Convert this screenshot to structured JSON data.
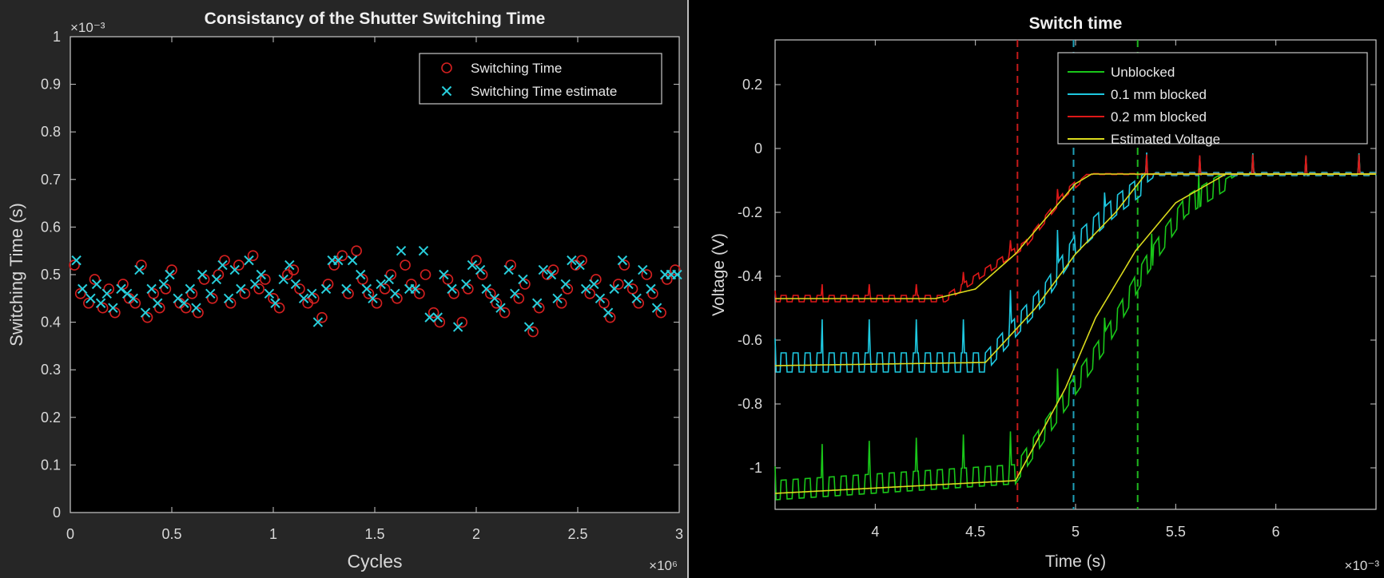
{
  "chart_data": [
    {
      "type": "scatter",
      "title": "Consistancy of the Shutter Switching Time",
      "xlabel": "Cycles",
      "ylabel": "Switching Time (s)",
      "x_exponent": "×10⁶",
      "y_exponent": "×10⁻³",
      "xlim": [
        0,
        3
      ],
      "ylim": [
        0,
        1
      ],
      "x_ticks": [
        "0",
        "0.5",
        "1",
        "1.5",
        "2",
        "2.5",
        "3"
      ],
      "y_ticks": [
        "0",
        "0.1",
        "0.2",
        "0.3",
        "0.4",
        "0.5",
        "0.6",
        "0.7",
        "0.8",
        "0.9",
        "1"
      ],
      "grid": false,
      "legend_position": "top-right",
      "series": [
        {
          "name": "Switching Time",
          "marker": "circle",
          "color": "#d42020",
          "x": [
            0.02,
            0.05,
            0.09,
            0.12,
            0.16,
            0.19,
            0.22,
            0.26,
            0.29,
            0.32,
            0.35,
            0.38,
            0.41,
            0.44,
            0.47,
            0.5,
            0.54,
            0.57,
            0.6,
            0.63,
            0.66,
            0.7,
            0.73,
            0.76,
            0.79,
            0.83,
            0.86,
            0.9,
            0.93,
            0.96,
            1.0,
            1.03,
            1.07,
            1.1,
            1.13,
            1.17,
            1.2,
            1.24,
            1.27,
            1.3,
            1.34,
            1.37,
            1.41,
            1.44,
            1.47,
            1.51,
            1.55,
            1.58,
            1.61,
            1.65,
            1.68,
            1.72,
            1.75,
            1.79,
            1.82,
            1.86,
            1.89,
            1.93,
            1.96,
            2.0,
            2.03,
            2.07,
            2.1,
            2.14,
            2.17,
            2.21,
            2.24,
            2.28,
            2.31,
            2.35,
            2.38,
            2.42,
            2.45,
            2.49,
            2.52,
            2.56,
            2.59,
            2.63,
            2.66,
            2.7,
            2.73,
            2.77,
            2.8,
            2.84,
            2.87,
            2.91,
            2.94,
            2.98
          ],
          "y": [
            0.52,
            0.46,
            0.44,
            0.49,
            0.43,
            0.47,
            0.42,
            0.48,
            0.45,
            0.44,
            0.52,
            0.41,
            0.46,
            0.43,
            0.47,
            0.51,
            0.44,
            0.43,
            0.46,
            0.42,
            0.49,
            0.45,
            0.5,
            0.53,
            0.44,
            0.52,
            0.46,
            0.54,
            0.47,
            0.49,
            0.45,
            0.43,
            0.5,
            0.51,
            0.47,
            0.44,
            0.45,
            0.41,
            0.48,
            0.52,
            0.54,
            0.46,
            0.55,
            0.49,
            0.46,
            0.44,
            0.47,
            0.5,
            0.45,
            0.52,
            0.48,
            0.46,
            0.5,
            0.42,
            0.4,
            0.49,
            0.46,
            0.4,
            0.47,
            0.53,
            0.5,
            0.46,
            0.44,
            0.42,
            0.52,
            0.45,
            0.48,
            0.38,
            0.43,
            0.5,
            0.51,
            0.44,
            0.47,
            0.52,
            0.53,
            0.46,
            0.49,
            0.44,
            0.41,
            0.48,
            0.52,
            0.47,
            0.44,
            0.5,
            0.46,
            0.42,
            0.49,
            0.51
          ]
        },
        {
          "name": "Switching Time estimate",
          "marker": "x",
          "color": "#28cfdc",
          "x": [
            0.03,
            0.06,
            0.1,
            0.13,
            0.15,
            0.18,
            0.21,
            0.25,
            0.28,
            0.31,
            0.34,
            0.37,
            0.4,
            0.43,
            0.46,
            0.49,
            0.53,
            0.56,
            0.59,
            0.62,
            0.65,
            0.69,
            0.72,
            0.75,
            0.78,
            0.81,
            0.84,
            0.88,
            0.91,
            0.94,
            0.98,
            1.01,
            1.05,
            1.08,
            1.11,
            1.15,
            1.19,
            1.22,
            1.26,
            1.29,
            1.32,
            1.36,
            1.39,
            1.43,
            1.46,
            1.49,
            1.53,
            1.57,
            1.6,
            1.63,
            1.67,
            1.7,
            1.74,
            1.77,
            1.81,
            1.84,
            1.88,
            1.91,
            1.95,
            1.98,
            2.02,
            2.05,
            2.09,
            2.12,
            2.16,
            2.19,
            2.23,
            2.26,
            2.3,
            2.33,
            2.37,
            2.4,
            2.44,
            2.47,
            2.51,
            2.54,
            2.58,
            2.61,
            2.65,
            2.68,
            2.72,
            2.75,
            2.79,
            2.82,
            2.86,
            2.89,
            2.93,
            2.96,
            2.99
          ],
          "y": [
            0.53,
            0.47,
            0.45,
            0.48,
            0.44,
            0.46,
            0.43,
            0.47,
            0.46,
            0.45,
            0.51,
            0.42,
            0.47,
            0.44,
            0.48,
            0.5,
            0.45,
            0.44,
            0.47,
            0.43,
            0.5,
            0.46,
            0.49,
            0.52,
            0.45,
            0.51,
            0.47,
            0.53,
            0.48,
            0.5,
            0.46,
            0.44,
            0.49,
            0.52,
            0.48,
            0.45,
            0.46,
            0.4,
            0.47,
            0.53,
            0.53,
            0.47,
            0.53,
            0.5,
            0.47,
            0.45,
            0.48,
            0.49,
            0.46,
            0.55,
            0.47,
            0.47,
            0.55,
            0.41,
            0.41,
            0.5,
            0.47,
            0.39,
            0.48,
            0.52,
            0.51,
            0.47,
            0.45,
            0.43,
            0.51,
            0.46,
            0.49,
            0.39,
            0.44,
            0.51,
            0.5,
            0.45,
            0.48,
            0.53,
            0.52,
            0.47,
            0.48,
            0.45,
            0.42,
            0.47,
            0.53,
            0.48,
            0.45,
            0.51,
            0.47,
            0.43,
            0.5,
            0.5,
            0.5
          ]
        }
      ]
    },
    {
      "type": "line",
      "title": "Switch time",
      "xlabel": "Time (s)",
      "ylabel": "Voltage (V)",
      "x_exponent": "×10⁻³",
      "xlim": [
        3.5,
        6.5
      ],
      "ylim": [
        -1.13,
        0.34
      ],
      "x_ticks": [
        "4",
        "4.5",
        "5",
        "5.5",
        "6"
      ],
      "y_ticks": [
        "0.2",
        "0",
        "-0.2",
        "-0.4",
        "-0.6",
        "-0.8",
        "-1"
      ],
      "grid": false,
      "legend_position": "top-right",
      "vlines": [
        {
          "x": 4.71,
          "color": "#c41a1a"
        },
        {
          "x": 4.99,
          "color": "#1fa0b8"
        },
        {
          "x": 5.31,
          "color": "#1fb81f"
        }
      ],
      "series": [
        {
          "name": "Unblocked",
          "color": "#19c619",
          "x": [
            3.5,
            4.7,
            5.15,
            5.35,
            5.55,
            5.8,
            6.5
          ],
          "y": [
            -1.07,
            -1.02,
            -0.6,
            -0.37,
            -0.18,
            -0.08,
            -0.08
          ],
          "noise": 0.03
        },
        {
          "name": "0.1 mm blocked",
          "color": "#1ec8e0",
          "x": [
            3.5,
            4.55,
            4.85,
            5.0,
            5.2,
            5.4,
            6.5
          ],
          "y": [
            -0.67,
            -0.67,
            -0.45,
            -0.3,
            -0.18,
            -0.08,
            -0.08
          ],
          "noise": 0.03
        },
        {
          "name": "0.2 mm blocked",
          "color": "#dd1818",
          "x": [
            3.5,
            4.35,
            4.75,
            4.95,
            5.06,
            6.5
          ],
          "y": [
            -0.47,
            -0.47,
            -0.3,
            -0.14,
            -0.08,
            -0.08
          ],
          "noise": 0.01
        },
        {
          "name": "Estimated Voltage",
          "color": "#dada1c",
          "x": [
            3.5,
            4.3,
            4.5,
            4.7,
            4.85,
            5.0,
            5.08,
            5.3,
            5.5,
            5.7,
            5.85,
            6.5
          ],
          "y": [
            -0.47,
            -0.47,
            -0.44,
            -0.33,
            -0.22,
            -0.11,
            -0.08,
            -0.08,
            -0.08,
            -0.08,
            -0.08,
            -0.08
          ],
          "noise": 0
        }
      ],
      "estimated_curves": [
        {
          "x": [
            3.5,
            4.55,
            4.8,
            5.0,
            5.2,
            5.35,
            6.5
          ],
          "y": [
            -0.68,
            -0.67,
            -0.5,
            -0.33,
            -0.2,
            -0.08,
            -0.08
          ]
        },
        {
          "x": [
            3.5,
            4.7,
            4.95,
            5.1,
            5.3,
            5.5,
            5.75,
            6.5
          ],
          "y": [
            -1.08,
            -1.04,
            -0.75,
            -0.53,
            -0.32,
            -0.17,
            -0.08,
            -0.08
          ]
        }
      ]
    }
  ]
}
